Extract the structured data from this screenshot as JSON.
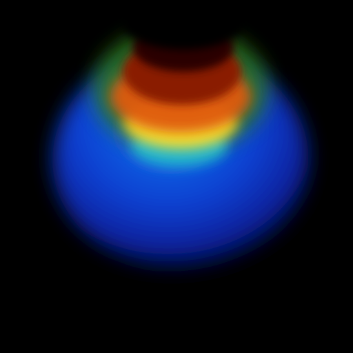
{
  "image": {
    "subject": "glowing-sphere-with-rainbow-crescent",
    "background_color": "#000000",
    "colors": {
      "deep_blue": "#0a1ea0",
      "blue": "#1050e0",
      "cyan": "#20c8d8",
      "green": "#3a8a18",
      "yellow": "#f2e030",
      "orange": "#e26010",
      "red": "#8a1806",
      "dark_red": "#300400"
    }
  }
}
